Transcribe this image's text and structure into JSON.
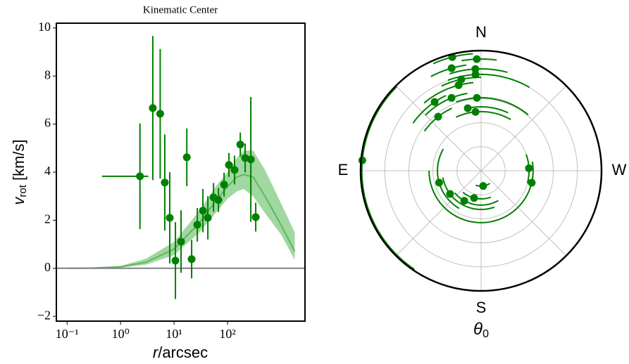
{
  "chart_data": [
    {
      "type": "scatter",
      "title": "Kinematic Center",
      "xlabel": [
        "r",
        "/arcsec"
      ],
      "ylabel": [
        "v",
        "rot",
        " [km/s]"
      ],
      "xscale": "log",
      "xlim": [
        0.063,
        2800
      ],
      "ylim": [
        -2.2,
        10.2
      ],
      "xticks": [
        {
          "value": 0.1,
          "label": "10⁻¹"
        },
        {
          "value": 1,
          "label": "10⁰"
        },
        {
          "value": 10,
          "label": "10¹"
        },
        {
          "value": 100,
          "label": "10²"
        }
      ],
      "yticks": [
        {
          "value": -2,
          "label": "−2"
        },
        0,
        2,
        4,
        6,
        8,
        10
      ],
      "hline": 0,
      "hline_color": "#808080",
      "model": {
        "x": [
          0.1,
          0.3,
          1,
          3,
          10,
          30,
          60,
          100,
          150,
          200,
          300,
          500,
          1000,
          1800
        ],
        "values": [
          0,
          0.01,
          0.06,
          0.25,
          0.8,
          1.9,
          2.8,
          3.4,
          3.8,
          3.9,
          3.8,
          3.0,
          1.8,
          0.7
        ],
        "low": [
          0,
          0,
          0.03,
          0.15,
          0.55,
          1.5,
          2.3,
          2.9,
          3.2,
          3.3,
          3.0,
          2.3,
          1.4,
          0.35
        ],
        "high": [
          0,
          0.02,
          0.1,
          0.4,
          1.1,
          2.4,
          3.4,
          4.0,
          4.6,
          4.9,
          4.9,
          4.1,
          2.7,
          1.5
        ],
        "color": "#5cb85c",
        "band_color": "#90d090"
      },
      "series": [
        {
          "color": "#008000",
          "x": [
            2.3,
            4.0,
            5.5,
            6.7,
            8.3,
            10.6,
            13.5,
            17.3,
            21.3,
            27.2,
            34.6,
            42.8,
            54.6,
            67.5,
            86,
            106,
            135,
            173,
            213,
            272,
            336
          ],
          "values": [
            3.83,
            6.67,
            6.43,
            3.57,
            2.1,
            0.32,
            1.11,
            4.62,
            0.38,
            1.81,
            2.4,
            2.1,
            2.95,
            2.84,
            3.48,
            4.3,
            4.09,
            5.15,
            4.59,
            4.53,
            2.13
          ],
          "yerr": [
            2.2,
            3.0,
            2.7,
            2.0,
            1.9,
            1.6,
            1.3,
            1.2,
            0.8,
            0.7,
            0.9,
            0.9,
            0.6,
            0.5,
            0.5,
            0.5,
            0.6,
            0.5,
            0.6,
            2.6,
            0.6
          ],
          "xbounds": [
            [
              0.45,
              3.3
            ],
            null,
            null,
            null,
            null,
            null,
            null,
            null,
            null,
            null,
            null,
            null,
            null,
            null,
            null,
            null,
            null,
            null,
            null,
            null,
            null
          ]
        }
      ]
    },
    {
      "type": "polar",
      "rlim": [
        0,
        5
      ],
      "rgrid": [
        1,
        2,
        3,
        4
      ],
      "thetaticks": [
        {
          "value": 0,
          "label": "N"
        },
        {
          "value": 90,
          "label": "E"
        },
        {
          "value": 180,
          "label": "S"
        },
        {
          "value": 270,
          "label": "W"
        }
      ],
      "thetalabel": [
        "θ",
        "0"
      ],
      "series": [
        {
          "color": "#008000",
          "r": [
            4.95,
            4.88,
            4.65,
            4.44,
            4.24,
            4.01,
            3.89,
            3.68,
            3.27,
            3.04,
            3.45,
            2.66,
            2.46,
            2.87,
            1.99,
            2.16,
            1.81,
            1.61,
            1.43,
            1.17,
            0.64
          ],
          "theta": [
            85,
            14.2,
            2.2,
            16,
            3.2,
            3.3,
            12.2,
            14.7,
            22,
            3.3,
            34,
            12,
            5.4,
            38.4,
            273,
            256.7,
            105.8,
            126.9,
            150.8,
            165.6,
            187.8
          ],
          "theta_lo": [
            45,
            4,
            -8,
            8,
            -15,
            -30,
            0,
            5,
            10,
            -40,
            25,
            -25,
            -30,
            25,
            255,
            90,
            60,
            100,
            130,
            140,
            160
          ],
          "theta_hi": [
            146,
            24,
            10,
            28,
            18,
            20,
            25,
            40,
            45,
            20,
            55,
            15,
            25,
            55,
            290,
            280,
            150,
            200,
            210,
            200,
            215
          ]
        }
      ]
    }
  ]
}
